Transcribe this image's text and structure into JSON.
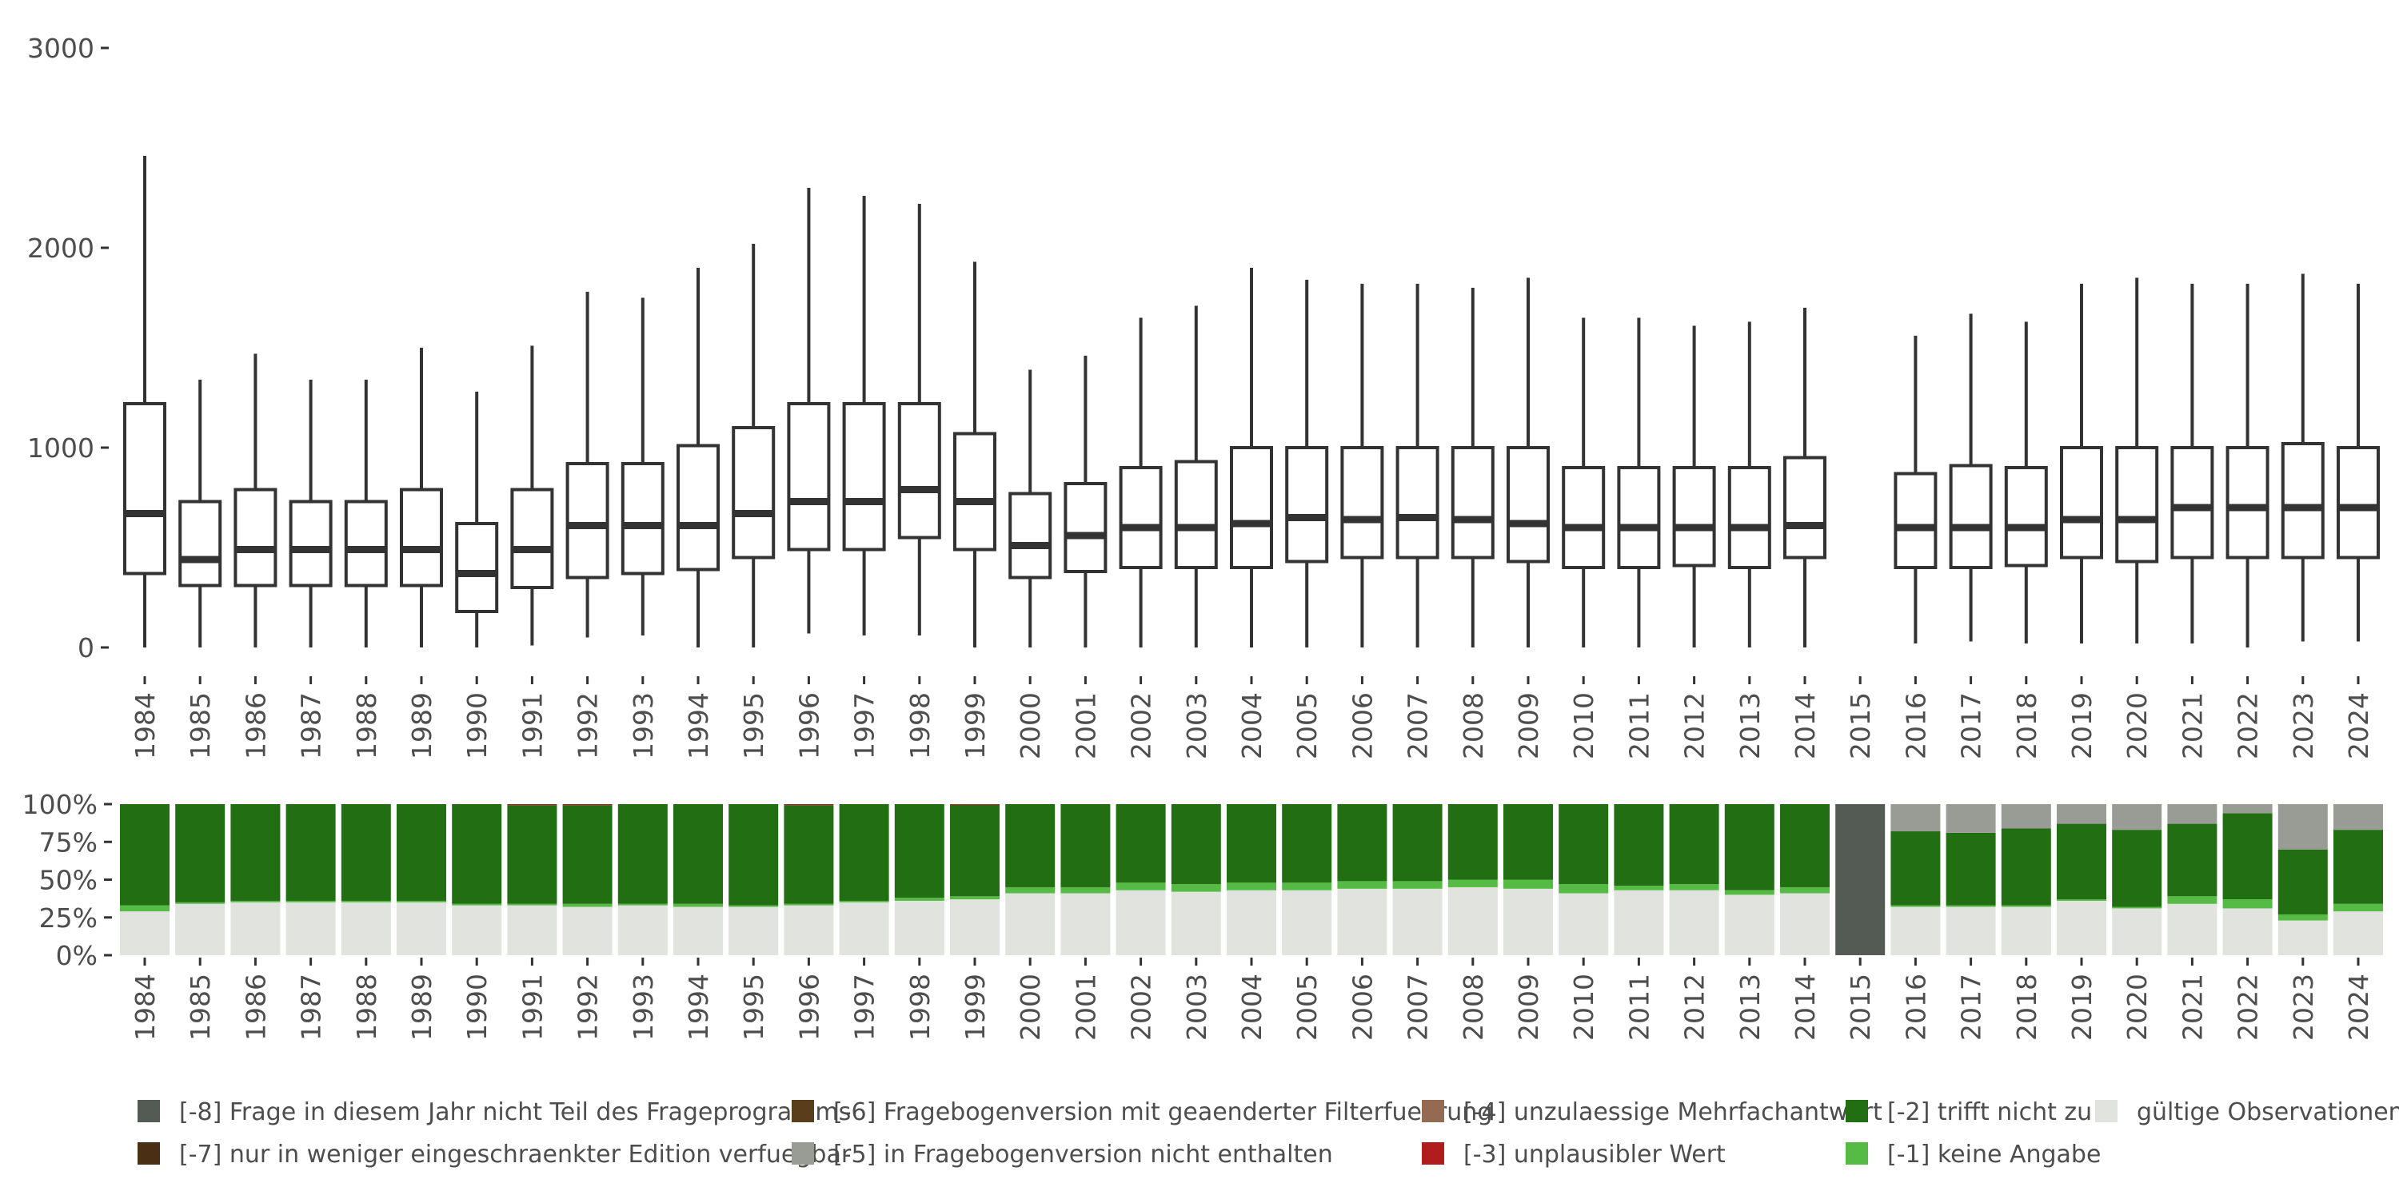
{
  "chart_data": [
    {
      "type": "box",
      "ylim": [
        0,
        3000
      ],
      "y_ticks": [
        0,
        1000,
        2000,
        3000
      ],
      "y_tick_labels": [
        "0",
        "1000",
        "2000",
        "3000"
      ],
      "x_labels": [
        "1984",
        "1985",
        "1986",
        "1987",
        "1988",
        "1989",
        "1990",
        "1991",
        "1992",
        "1993",
        "1994",
        "1995",
        "1996",
        "1997",
        "1998",
        "1999",
        "2000",
        "2001",
        "2002",
        "2003",
        "2004",
        "2005",
        "2006",
        "2007",
        "2008",
        "2009",
        "2010",
        "2011",
        "2012",
        "2013",
        "2014",
        "2015",
        "2016",
        "2017",
        "2018",
        "2019",
        "2020",
        "2021",
        "2022",
        "2023",
        "2024"
      ],
      "boxes": [
        {
          "year": "1984",
          "min": 0,
          "q1": 370,
          "median": 670,
          "q3": 1220,
          "max": 2460
        },
        {
          "year": "1985",
          "min": 0,
          "q1": 310,
          "median": 440,
          "q3": 730,
          "max": 1340
        },
        {
          "year": "1986",
          "min": 0,
          "q1": 310,
          "median": 490,
          "q3": 790,
          "max": 1470
        },
        {
          "year": "1987",
          "min": 0,
          "q1": 310,
          "median": 490,
          "q3": 730,
          "max": 1340
        },
        {
          "year": "1988",
          "min": 0,
          "q1": 310,
          "median": 490,
          "q3": 730,
          "max": 1340
        },
        {
          "year": "1989",
          "min": 0,
          "q1": 310,
          "median": 490,
          "q3": 790,
          "max": 1500
        },
        {
          "year": "1990",
          "min": 0,
          "q1": 180,
          "median": 370,
          "q3": 620,
          "max": 1280
        },
        {
          "year": "1991",
          "min": 10,
          "q1": 300,
          "median": 490,
          "q3": 790,
          "max": 1510
        },
        {
          "year": "1992",
          "min": 50,
          "q1": 350,
          "median": 610,
          "q3": 920,
          "max": 1780
        },
        {
          "year": "1993",
          "min": 60,
          "q1": 370,
          "median": 610,
          "q3": 920,
          "max": 1750
        },
        {
          "year": "1994",
          "min": 0,
          "q1": 390,
          "median": 610,
          "q3": 1010,
          "max": 1900
        },
        {
          "year": "1995",
          "min": 0,
          "q1": 450,
          "median": 670,
          "q3": 1100,
          "max": 2020
        },
        {
          "year": "1996",
          "min": 70,
          "q1": 490,
          "median": 730,
          "q3": 1220,
          "max": 2300
        },
        {
          "year": "1997",
          "min": 60,
          "q1": 490,
          "median": 730,
          "q3": 1220,
          "max": 2260
        },
        {
          "year": "1998",
          "min": 60,
          "q1": 550,
          "median": 790,
          "q3": 1220,
          "max": 2220
        },
        {
          "year": "1999",
          "min": 0,
          "q1": 490,
          "median": 730,
          "q3": 1070,
          "max": 1930
        },
        {
          "year": "2000",
          "min": 0,
          "q1": 350,
          "median": 510,
          "q3": 770,
          "max": 1390
        },
        {
          "year": "2001",
          "min": 0,
          "q1": 380,
          "median": 560,
          "q3": 820,
          "max": 1460
        },
        {
          "year": "2002",
          "min": 0,
          "q1": 400,
          "median": 600,
          "q3": 900,
          "max": 1650
        },
        {
          "year": "2003",
          "min": 0,
          "q1": 400,
          "median": 600,
          "q3": 930,
          "max": 1710
        },
        {
          "year": "2004",
          "min": 0,
          "q1": 400,
          "median": 620,
          "q3": 1000,
          "max": 1900
        },
        {
          "year": "2005",
          "min": 0,
          "q1": 430,
          "median": 650,
          "q3": 1000,
          "max": 1840
        },
        {
          "year": "2006",
          "min": 0,
          "q1": 450,
          "median": 640,
          "q3": 1000,
          "max": 1820
        },
        {
          "year": "2007",
          "min": 0,
          "q1": 450,
          "median": 650,
          "q3": 1000,
          "max": 1820
        },
        {
          "year": "2008",
          "min": 0,
          "q1": 450,
          "median": 640,
          "q3": 1000,
          "max": 1800
        },
        {
          "year": "2009",
          "min": 0,
          "q1": 430,
          "median": 620,
          "q3": 1000,
          "max": 1850
        },
        {
          "year": "2010",
          "min": 0,
          "q1": 400,
          "median": 600,
          "q3": 900,
          "max": 1650
        },
        {
          "year": "2011",
          "min": 0,
          "q1": 400,
          "median": 600,
          "q3": 900,
          "max": 1650
        },
        {
          "year": "2012",
          "min": 0,
          "q1": 410,
          "median": 600,
          "q3": 900,
          "max": 1610
        },
        {
          "year": "2013",
          "min": 0,
          "q1": 400,
          "median": 600,
          "q3": 900,
          "max": 1630
        },
        {
          "year": "2014",
          "min": 0,
          "q1": 450,
          "median": 610,
          "q3": 950,
          "max": 1700
        },
        {
          "year": "2016",
          "min": 20,
          "q1": 400,
          "median": 600,
          "q3": 870,
          "max": 1560
        },
        {
          "year": "2017",
          "min": 30,
          "q1": 400,
          "median": 600,
          "q3": 910,
          "max": 1670
        },
        {
          "year": "2018",
          "min": 20,
          "q1": 410,
          "median": 600,
          "q3": 900,
          "max": 1630
        },
        {
          "year": "2019",
          "min": 20,
          "q1": 450,
          "median": 640,
          "q3": 1000,
          "max": 1820
        },
        {
          "year": "2020",
          "min": 20,
          "q1": 430,
          "median": 640,
          "q3": 1000,
          "max": 1850
        },
        {
          "year": "2021",
          "min": 20,
          "q1": 450,
          "median": 700,
          "q3": 1000,
          "max": 1820
        },
        {
          "year": "2022",
          "min": 0,
          "q1": 450,
          "median": 700,
          "q3": 1000,
          "max": 1820
        },
        {
          "year": "2023",
          "min": 30,
          "q1": 450,
          "median": 700,
          "q3": 1020,
          "max": 1870
        },
        {
          "year": "2024",
          "min": 30,
          "q1": 450,
          "median": 700,
          "q3": 1000,
          "max": 1820
        }
      ]
    },
    {
      "type": "stacked_bar",
      "y_ticks": [
        0,
        0.25,
        0.5,
        0.75,
        1
      ],
      "y_tick_labels": [
        "0%",
        "25%",
        "50%",
        "75%",
        "100%"
      ],
      "categories": [
        "1984",
        "1985",
        "1986",
        "1987",
        "1988",
        "1989",
        "1990",
        "1991",
        "1992",
        "1993",
        "1994",
        "1995",
        "1996",
        "1997",
        "1998",
        "1999",
        "2000",
        "2001",
        "2002",
        "2003",
        "2004",
        "2005",
        "2006",
        "2007",
        "2008",
        "2009",
        "2010",
        "2011",
        "2012",
        "2013",
        "2014",
        "2015",
        "2016",
        "2017",
        "2018",
        "2019",
        "2020",
        "2021",
        "2022",
        "2023",
        "2024"
      ],
      "series": [
        {
          "name": "gültige Observationen",
          "color": "#e1e3df",
          "values": [
            0.29,
            0.34,
            0.35,
            0.35,
            0.35,
            0.35,
            0.33,
            0.33,
            0.32,
            0.33,
            0.32,
            0.32,
            0.33,
            0.35,
            0.36,
            0.37,
            0.41,
            0.41,
            0.43,
            0.42,
            0.43,
            0.43,
            0.44,
            0.44,
            0.45,
            0.44,
            0.41,
            0.43,
            0.43,
            0.4,
            0.41,
            0,
            0.32,
            0.32,
            0.32,
            0.36,
            0.31,
            0.34,
            0.31,
            0.23,
            0.29
          ]
        },
        {
          "name": "[-1] keine Angabe",
          "color": "#55bb44",
          "values": [
            0.04,
            0.01,
            0.01,
            0.01,
            0.01,
            0.01,
            0.01,
            0.01,
            0.02,
            0.01,
            0.02,
            0.01,
            0.01,
            0.01,
            0.02,
            0.02,
            0.04,
            0.04,
            0.05,
            0.05,
            0.05,
            0.05,
            0.05,
            0.05,
            0.05,
            0.06,
            0.06,
            0.03,
            0.04,
            0.03,
            0.04,
            0,
            0.01,
            0.01,
            0.01,
            0.01,
            0.01,
            0.05,
            0.06,
            0.04,
            0.05
          ]
        },
        {
          "name": "[-2] trifft nicht zu",
          "color": "#226e12",
          "values": [
            0.67,
            0.65,
            0.64,
            0.64,
            0.64,
            0.64,
            0.66,
            0.654,
            0.654,
            0.66,
            0.66,
            0.67,
            0.654,
            0.64,
            0.62,
            0.605,
            0.55,
            0.55,
            0.52,
            0.53,
            0.52,
            0.52,
            0.51,
            0.51,
            0.5,
            0.5,
            0.53,
            0.54,
            0.53,
            0.57,
            0.55,
            0,
            0.49,
            0.48,
            0.51,
            0.5,
            0.51,
            0.48,
            0.57,
            0.43,
            0.49
          ]
        },
        {
          "name": "[-3] unplausibler Wert",
          "color": "#b11c1c",
          "values": [
            0,
            0,
            0,
            0,
            0,
            0,
            0,
            0.006,
            0.006,
            0,
            0,
            0,
            0.006,
            0,
            0,
            0.005,
            0,
            0,
            0,
            0,
            0,
            0,
            0,
            0,
            0,
            0,
            0,
            0,
            0,
            0,
            0,
            0,
            0,
            0,
            0,
            0,
            0,
            0,
            0,
            0,
            0
          ]
        },
        {
          "name": "[-4] unzulaessige Mehrfachantwort",
          "color": "#946a52",
          "values": [
            0,
            0,
            0,
            0,
            0,
            0,
            0,
            0,
            0,
            0,
            0,
            0,
            0,
            0,
            0,
            0,
            0,
            0,
            0,
            0,
            0,
            0,
            0,
            0,
            0,
            0,
            0,
            0,
            0,
            0,
            0,
            0,
            0,
            0,
            0,
            0,
            0,
            0,
            0,
            0,
            0
          ]
        },
        {
          "name": "[-5] in Fragebogenversion nicht enthalten",
          "color": "#999c95",
          "values": [
            0,
            0,
            0,
            0,
            0,
            0,
            0,
            0,
            0,
            0,
            0,
            0,
            0,
            0,
            0,
            0,
            0,
            0,
            0,
            0,
            0,
            0,
            0,
            0,
            0,
            0,
            0,
            0,
            0,
            0,
            0,
            0,
            0.18,
            0.19,
            0.16,
            0.13,
            0.17,
            0.13,
            0.06,
            0.3,
            0.17
          ]
        },
        {
          "name": "[-6] Fragebogenversion mit geaenderter Filterfuehrung",
          "color": "#5a3d1b",
          "values": [
            0,
            0,
            0,
            0,
            0,
            0,
            0,
            0,
            0,
            0,
            0,
            0,
            0,
            0,
            0,
            0,
            0,
            0,
            0,
            0,
            0,
            0,
            0,
            0,
            0,
            0,
            0,
            0,
            0,
            0,
            0,
            0,
            0,
            0,
            0,
            0,
            0,
            0,
            0,
            0,
            0
          ]
        },
        {
          "name": "[-7] nur in weniger eingeschraenkter Edition verfuegbar",
          "color": "#4a2f14",
          "values": [
            0,
            0,
            0,
            0,
            0,
            0,
            0,
            0,
            0,
            0,
            0,
            0,
            0,
            0,
            0,
            0,
            0,
            0,
            0,
            0,
            0,
            0,
            0,
            0,
            0,
            0,
            0,
            0,
            0,
            0,
            0,
            0,
            0,
            0,
            0,
            0,
            0,
            0,
            0,
            0,
            0
          ]
        },
        {
          "name": "[-8] Frage in diesem Jahr nicht Teil des Frageprogramms",
          "color": "#545b54",
          "values": [
            0,
            0,
            0,
            0,
            0,
            0,
            0,
            0,
            0,
            0,
            0,
            0,
            0,
            0,
            0,
            0,
            0,
            0,
            0,
            0,
            0,
            0,
            0,
            0,
            0,
            0,
            0,
            0,
            0,
            0,
            0,
            1,
            0,
            0,
            0,
            0,
            0,
            0,
            0,
            0,
            0
          ]
        }
      ]
    }
  ],
  "legend": {
    "items": [
      {
        "label": "[-8] Frage in diesem Jahr nicht Teil des Frageprogramms",
        "color": "#545b54"
      },
      {
        "label": "[-7] nur in weniger eingeschraenkter Edition verfuegbar",
        "color": "#4a2f14"
      },
      {
        "label": "[-6] Fragebogenversion mit geaenderter Filterfuehrung",
        "color": "#5a3d1b"
      },
      {
        "label": "[-5] in Fragebogenversion nicht enthalten",
        "color": "#999c95"
      },
      {
        "label": "[-4] unzulaessige Mehrfachantwort",
        "color": "#946a52"
      },
      {
        "label": "[-3] unplausibler Wert",
        "color": "#b11c1c"
      },
      {
        "label": "[-2] trifft nicht zu",
        "color": "#226e12"
      },
      {
        "label": "[-1] keine Angabe",
        "color": "#55bb44"
      },
      {
        "label": "gültige Observationen",
        "color": "#e1e3df"
      }
    ]
  }
}
